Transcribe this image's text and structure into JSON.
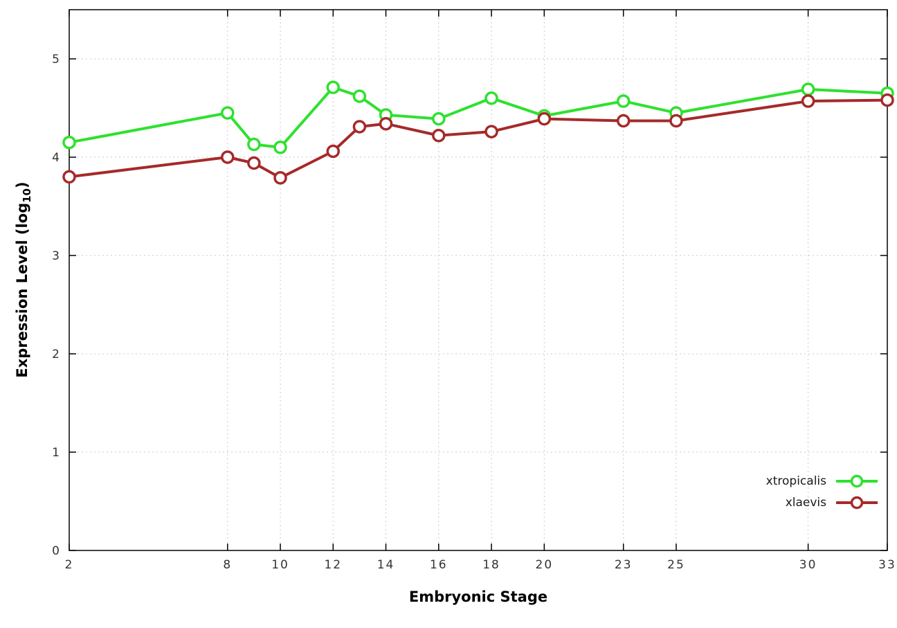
{
  "chart_data": {
    "type": "line",
    "title": "",
    "xlabel": "Embryonic Stage",
    "ylabel": "Expression Level (log10)",
    "x": [
      2,
      8,
      9,
      10,
      12,
      13,
      14,
      16,
      18,
      20,
      23,
      25,
      30,
      33
    ],
    "xticks": [
      2,
      8,
      10,
      12,
      14,
      16,
      18,
      20,
      23,
      25,
      30,
      33
    ],
    "yticks": [
      0,
      1,
      2,
      3,
      4,
      5
    ],
    "xlim": [
      2,
      33
    ],
    "ylim": [
      0,
      5.5
    ],
    "grid": true,
    "legend_position": "bottom-right",
    "series": [
      {
        "name": "xtropicalis",
        "color": "#2ee12e",
        "values": [
          4.15,
          4.45,
          4.13,
          4.1,
          4.71,
          4.62,
          4.43,
          4.39,
          4.6,
          4.42,
          4.57,
          4.45,
          4.69,
          4.65
        ]
      },
      {
        "name": "xlaevis",
        "color": "#a52a2a",
        "values": [
          3.8,
          4.0,
          3.94,
          3.79,
          4.06,
          4.31,
          4.34,
          4.22,
          4.26,
          4.39,
          4.37,
          4.37,
          4.57,
          4.58
        ]
      }
    ]
  },
  "labels": {
    "ylabel_main": "Expression Level (log",
    "ylabel_sub": "10",
    "ylabel_close": ")"
  }
}
